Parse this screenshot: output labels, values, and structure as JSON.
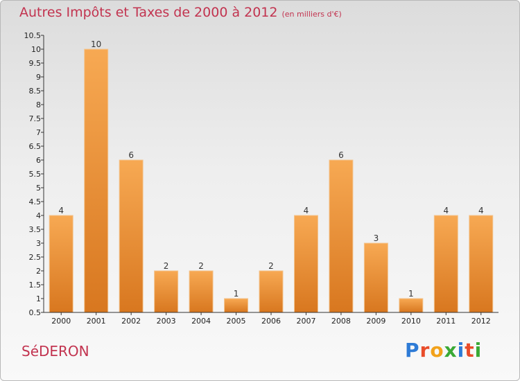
{
  "title": "Autres Impôts et Taxes de 2000 à 2012",
  "unit_note": "(en milliers d'€)",
  "commune": "SéDERON",
  "logo": {
    "letters": [
      "P",
      "r",
      "o",
      "x",
      "i",
      "t",
      "i"
    ],
    "colors": [
      "#2e7bd6",
      "#e94c2a",
      "#f2a21b",
      "#3aa935",
      "#2e7bd6",
      "#e94c2a",
      "#3aa935"
    ]
  },
  "colors": {
    "bar_light": "#f7a953",
    "bar_dark": "#d8771f",
    "title": "#c2334f"
  },
  "chart_data": {
    "type": "bar",
    "categories": [
      "2000",
      "2001",
      "2002",
      "2003",
      "2004",
      "2005",
      "2006",
      "2007",
      "2008",
      "2009",
      "2010",
      "2011",
      "2012"
    ],
    "values": [
      4,
      10,
      6,
      2,
      2,
      1,
      2,
      4,
      6,
      3,
      1,
      4,
      4
    ],
    "value_labels": [
      "4",
      "10",
      "6",
      "2",
      "2",
      "1",
      "2",
      "4",
      "6",
      "3",
      "1",
      "4",
      "4"
    ],
    "ylim": [
      0.5,
      10.5
    ],
    "yticks": [
      "0.5",
      "1",
      "1.5",
      "2",
      "2.5",
      "3",
      "3.5",
      "4",
      "4.5",
      "5",
      "5.5",
      "6",
      "6.5",
      "7",
      "7.5",
      "8",
      "8.5",
      "9",
      "9.5",
      "10",
      "10.5"
    ],
    "grid": false
  }
}
